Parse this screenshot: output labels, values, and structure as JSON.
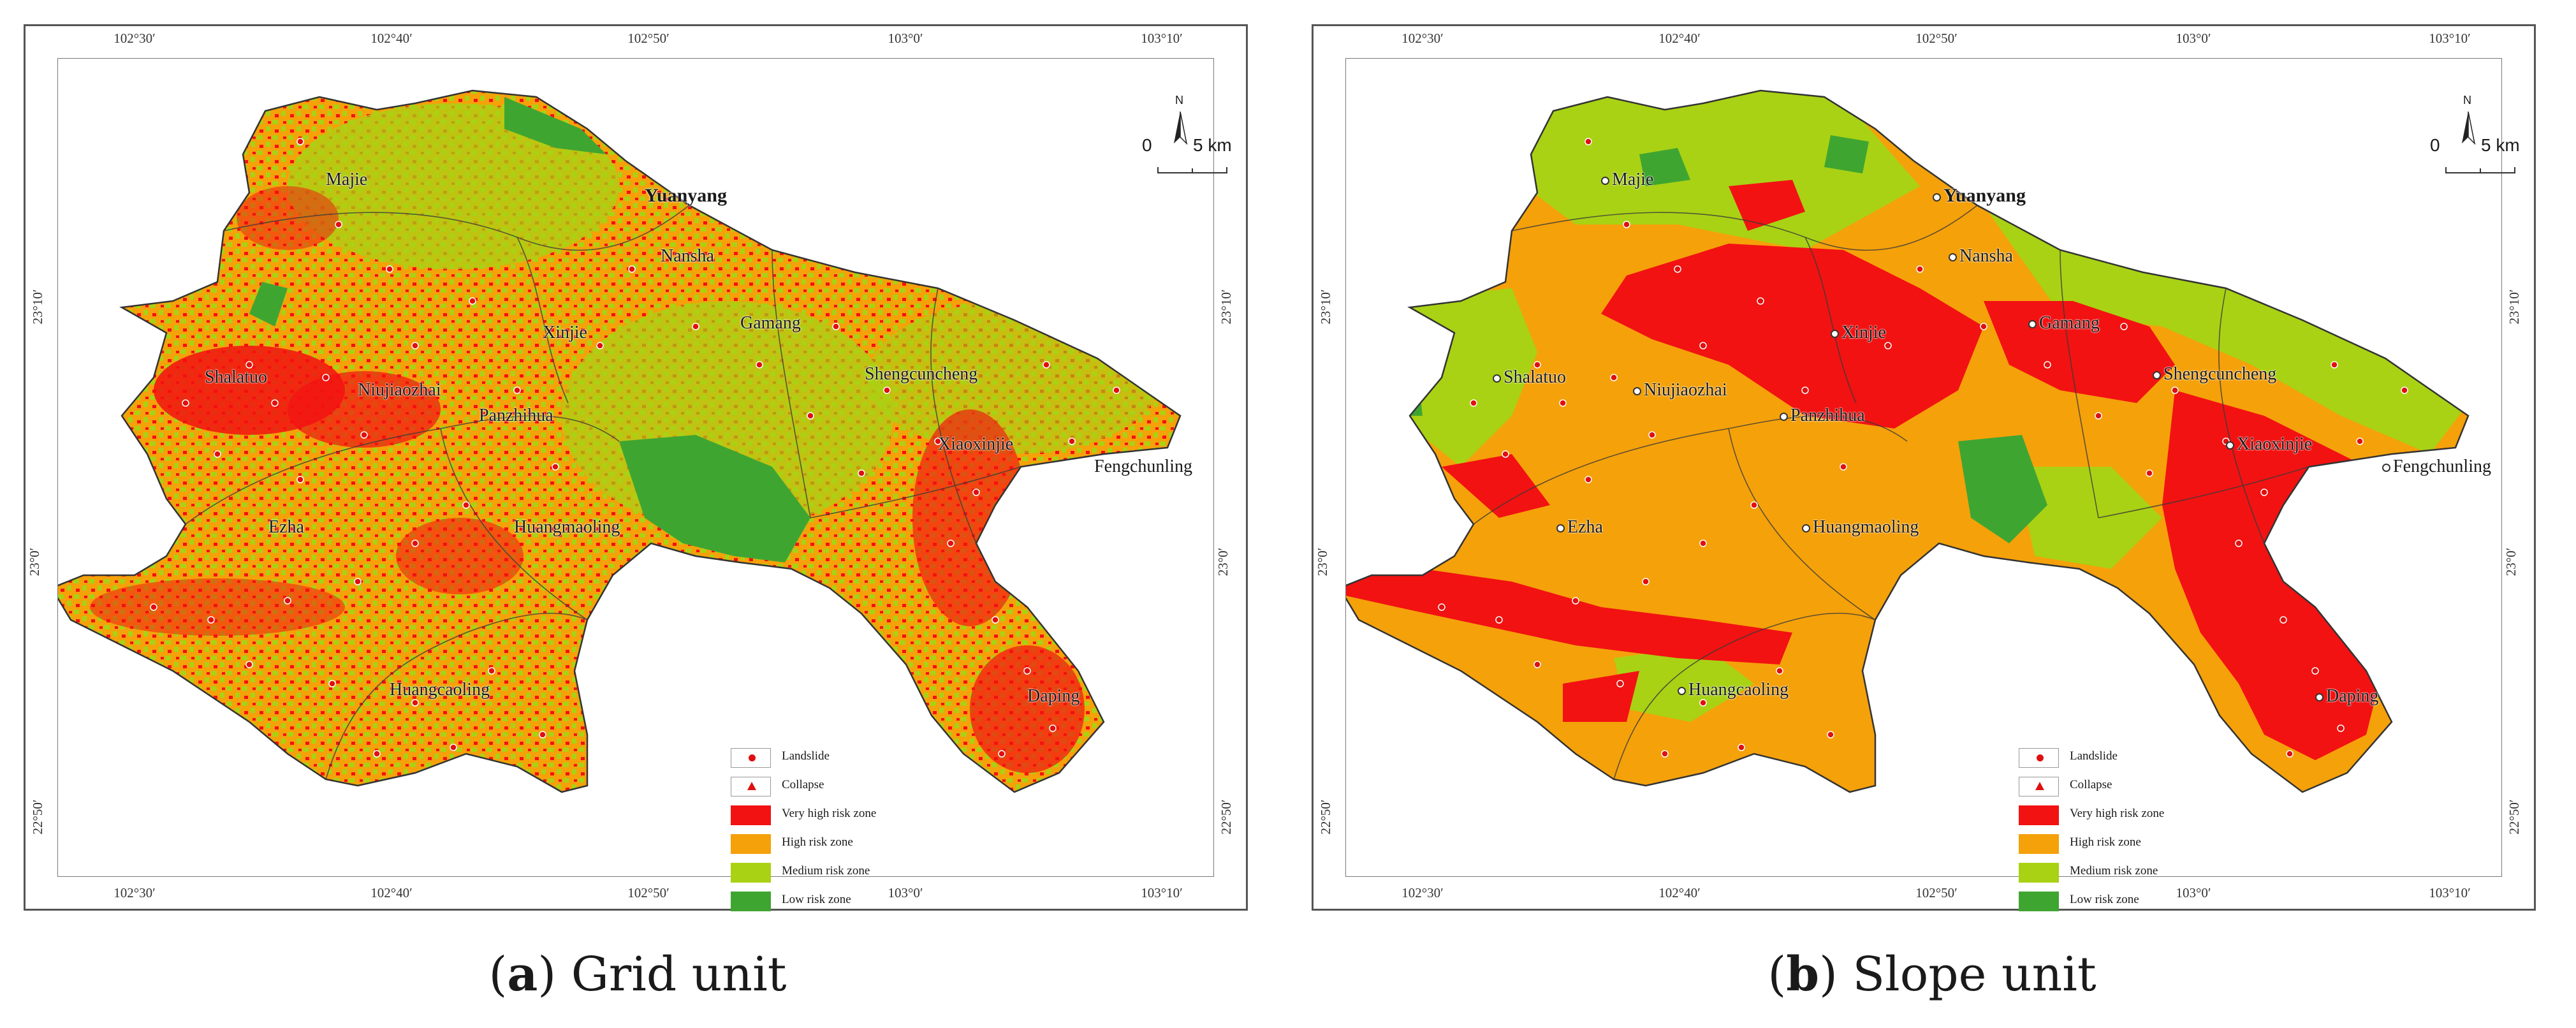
{
  "colors": {
    "very_high": "#f21212",
    "high": "#f5a10a",
    "medium": "#a9d214",
    "low": "#3fa531",
    "point": "#e01010"
  },
  "axes": {
    "top_ticks": [
      "102°30′",
      "102°40′",
      "102°50′",
      "103°0′",
      "103°10′"
    ],
    "bottom_ticks": [
      "102°30′",
      "102°40′",
      "102°50′",
      "103°0′",
      "103°10′"
    ],
    "left_ticks": [
      "23°10′",
      "23°0′",
      "22°50′"
    ],
    "right_ticks": [
      "23°10′",
      "23°0′",
      "22°50′"
    ]
  },
  "north_label": "N",
  "scale": {
    "zero": "0",
    "five": "5 km"
  },
  "places": {
    "county": "Yuanyang",
    "towns": [
      "Majie",
      "Nansha",
      "Xinjie",
      "Gamang",
      "Shalatuo",
      "Niujiaozhai",
      "Panzhihua",
      "Shengcuncheng",
      "Xiaoxinjie",
      "Fengchunling",
      "Ezha",
      "Huangmaoling",
      "Huangcaoling",
      "Daping"
    ]
  },
  "legend": {
    "landslide": "Landslide",
    "collapse": "Collapse",
    "very_high": "Very high risk zone",
    "high": "High risk zone",
    "medium": "Medium risk zone",
    "low": "Low risk zone"
  },
  "captions": {
    "a_letter": "a",
    "a_text": " Grid unit",
    "b_letter": "b",
    "b_text": " Slope unit"
  }
}
